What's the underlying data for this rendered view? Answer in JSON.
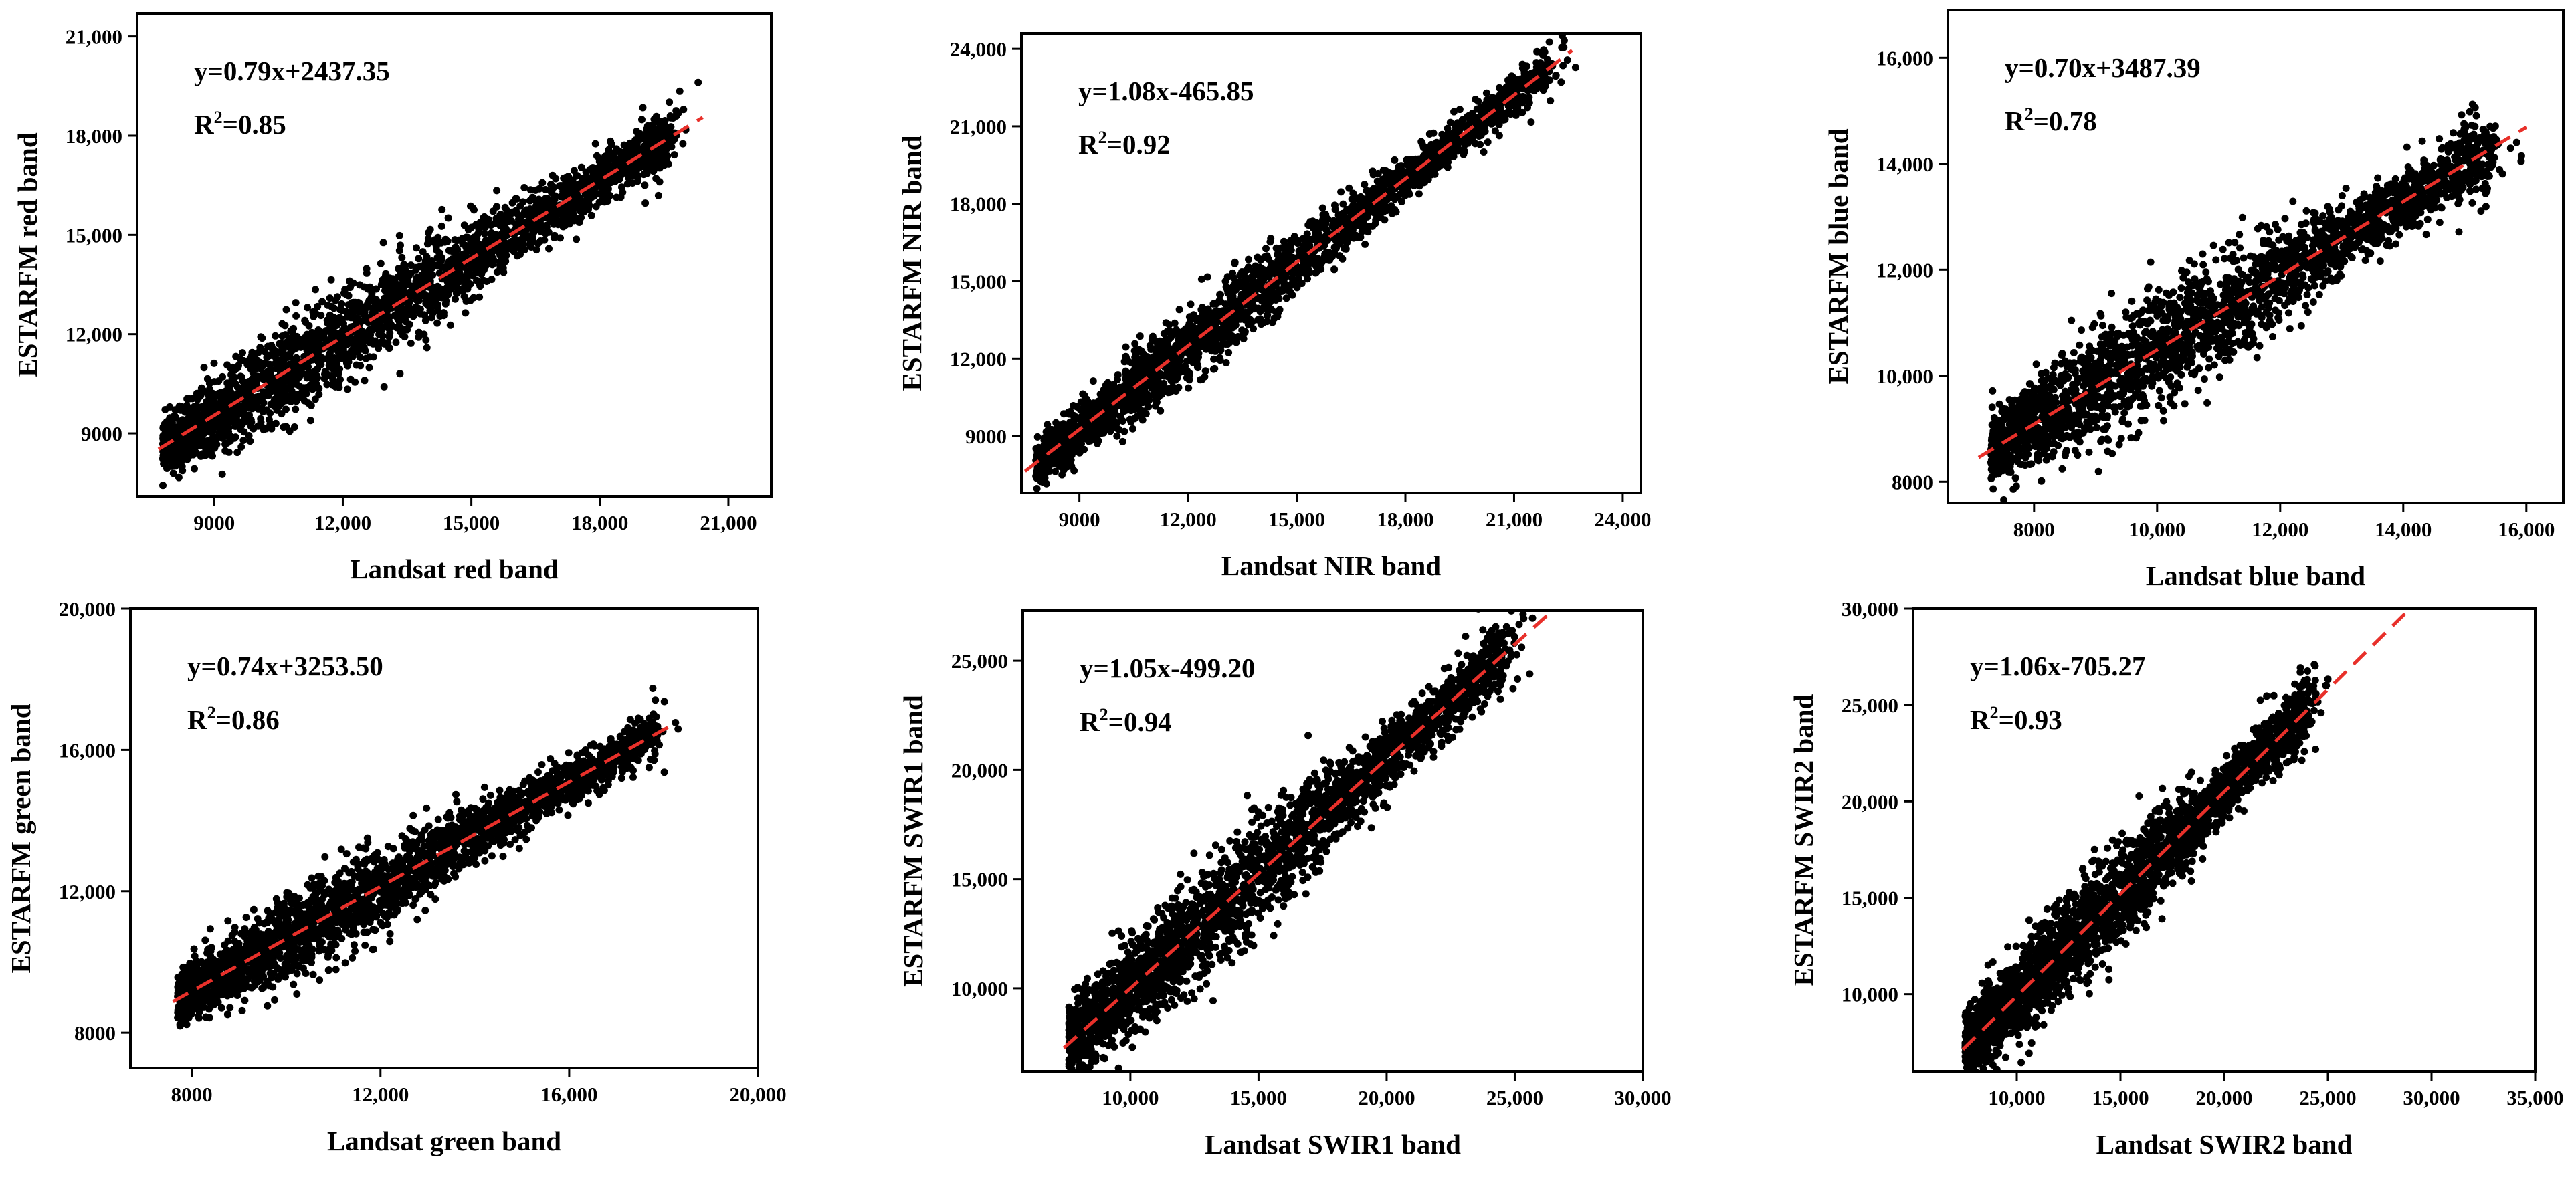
{
  "figure": {
    "colors": {
      "points": "#000000",
      "fit_line": "#e8302a",
      "frame": "#000000",
      "background": "#ffffff"
    }
  },
  "chart_data": [
    {
      "type": "scatter",
      "band": "red",
      "xlabel": "Landsat red band",
      "ylabel": "ESTARFM red band",
      "equation": "y=0.79x+2437.35",
      "r2_prefix": "R",
      "r2_sup": "2",
      "r2_value": "=0.85",
      "slope": 0.79,
      "intercept": 2437.35,
      "r2": 0.85,
      "xlim": [
        7200,
        22000
      ],
      "ylim": [
        7100,
        21700
      ],
      "xticks": [
        9000,
        12000,
        15000,
        18000,
        21000
      ],
      "xtick_labels": [
        "9000",
        "12,000",
        "15,000",
        "18,000",
        "21,000"
      ],
      "yticks": [
        9000,
        12000,
        15000,
        18000,
        21000
      ],
      "ytick_labels": [
        "9000",
        "12,000",
        "15,000",
        "18,000",
        "21,000"
      ],
      "fit_x": [
        7700,
        20400
      ],
      "data_x_range": [
        7800,
        19800
      ],
      "spread": 760
    },
    {
      "type": "scatter",
      "band": "NIR",
      "xlabel": "Landsat NIR band",
      "ylabel": "ESTARFM NIR band",
      "equation": "y=1.08x-465.85",
      "r2_prefix": "R",
      "r2_sup": "2",
      "r2_value": "=0.92",
      "slope": 1.08,
      "intercept": -465.85,
      "r2": 0.92,
      "xlim": [
        7400,
        24500
      ],
      "ylim": [
        6800,
        24600
      ],
      "xticks": [
        9000,
        12000,
        15000,
        18000,
        21000,
        24000
      ],
      "xtick_labels": [
        "9000",
        "12,000",
        "15,000",
        "18,000",
        "21,000",
        "24,000"
      ],
      "yticks": [
        9000,
        12000,
        15000,
        18000,
        21000,
        24000
      ],
      "ytick_labels": [
        "9000",
        "12,000",
        "15,000",
        "18,000",
        "21,000",
        "24,000"
      ],
      "fit_x": [
        7500,
        22600
      ],
      "data_x_range": [
        7800,
        22200
      ],
      "spread": 700
    },
    {
      "type": "scatter",
      "band": "blue",
      "xlabel": "Landsat blue band",
      "ylabel": "ESTARFM blue band",
      "equation": "y=0.70x+3487.39",
      "r2_prefix": "R",
      "r2_sup": "2",
      "r2_value": "=0.78",
      "slope": 0.7,
      "intercept": 3487.39,
      "r2": 0.78,
      "xlim": [
        6600,
        16600
      ],
      "ylim": [
        7600,
        16900
      ],
      "xticks": [
        8000,
        10000,
        12000,
        14000,
        16000
      ],
      "xtick_labels": [
        "8000",
        "10,000",
        "12,000",
        "14,000",
        "16,000"
      ],
      "yticks": [
        8000,
        10000,
        12000,
        14000,
        16000
      ],
      "ytick_labels": [
        "8000",
        "10,000",
        "12,000",
        "14,000",
        "16,000"
      ],
      "fit_x": [
        7100,
        16000
      ],
      "data_x_range": [
        7300,
        15600
      ],
      "spread": 560
    },
    {
      "type": "scatter",
      "band": "green",
      "xlabel": "Landsat green band",
      "ylabel": "ESTARFM green band",
      "equation": "y=0.74x+3253.50",
      "r2_prefix": "R",
      "r2_sup": "2",
      "r2_value": "=0.86",
      "slope": 0.74,
      "intercept": 3253.5,
      "r2": 0.86,
      "xlim": [
        6700,
        20000
      ],
      "ylim": [
        7000,
        20000
      ],
      "xticks": [
        8000,
        12000,
        16000,
        20000
      ],
      "xtick_labels": [
        "8000",
        "12,000",
        "16,000",
        "20,000"
      ],
      "yticks": [
        8000,
        12000,
        16000,
        20000
      ],
      "ytick_labels": [
        "8000",
        "12,000",
        "16,000",
        "20,000"
      ],
      "fit_x": [
        7600,
        18100
      ],
      "data_x_range": [
        7700,
        18000
      ],
      "spread": 620
    },
    {
      "type": "scatter",
      "band": "SWIR1",
      "xlabel": "Landsat SWIR1 band",
      "ylabel": "ESTARFM SWIR1 band",
      "equation": "y=1.05x-499.20",
      "r2_prefix": "R",
      "r2_sup": "2",
      "r2_value": "=0.94",
      "slope": 1.05,
      "intercept": -499.2,
      "r2": 0.94,
      "xlim": [
        5800,
        30000
      ],
      "ylim": [
        6200,
        27300
      ],
      "xticks": [
        10000,
        15000,
        20000,
        25000,
        30000
      ],
      "xtick_labels": [
        "10,000",
        "15,000",
        "20,000",
        "25,000",
        "30,000"
      ],
      "yticks": [
        10000,
        15000,
        20000,
        25000
      ],
      "ytick_labels": [
        "10,000",
        "15,000",
        "20,000",
        "25,000"
      ],
      "fit_x": [
        7400,
        27000
      ],
      "data_x_range": [
        7600,
        25000
      ],
      "spread": 1300
    },
    {
      "type": "scatter",
      "band": "SWIR2",
      "xlabel": "Landsat SWIR2 band",
      "ylabel": "ESTARFM SWIR2 band",
      "equation": "y=1.06x-705.27",
      "r2_prefix": "R",
      "r2_sup": "2",
      "r2_value": "=0.93",
      "slope": 1.06,
      "intercept": -705.27,
      "r2": 0.93,
      "xlim": [
        5000,
        35000
      ],
      "ylim": [
        6000,
        30000
      ],
      "xticks": [
        10000,
        15000,
        20000,
        25000,
        30000,
        35000
      ],
      "xtick_labels": [
        "10,000",
        "15,000",
        "20,000",
        "25,000",
        "30,000",
        "35,000"
      ],
      "yticks": [
        10000,
        15000,
        20000,
        25000,
        30000
      ],
      "ytick_labels": [
        "10,000",
        "15,000",
        "20,000",
        "25,000",
        "30,000"
      ],
      "fit_x": [
        7400,
        29200
      ],
      "data_x_range": [
        7500,
        24500
      ],
      "spread": 1400
    }
  ]
}
